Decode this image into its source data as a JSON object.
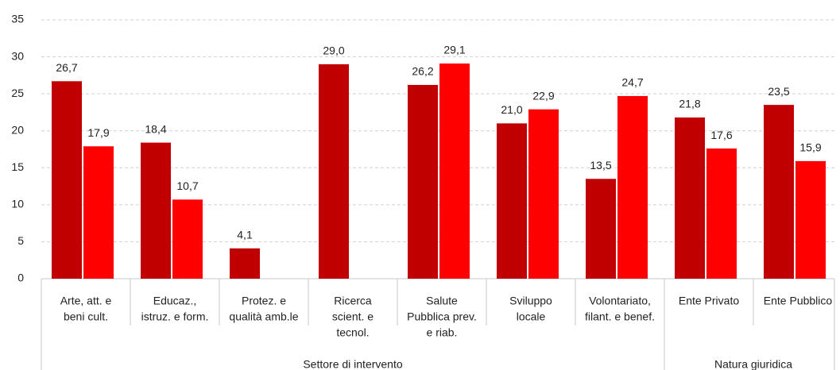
{
  "chart_data": {
    "type": "bar",
    "categories": [
      [
        "Arte, att. e",
        "beni cult."
      ],
      [
        "Educaz.,",
        "istruz. e form."
      ],
      [
        "Protez. e",
        "qualità amb.le"
      ],
      [
        "Ricerca",
        "scient. e",
        "tecnol."
      ],
      [
        "Salute",
        "Pubblica prev.",
        "e riab."
      ],
      [
        "Sviluppo",
        "locale"
      ],
      [
        "Volontariato,",
        "filant. e benef."
      ],
      [
        "Ente Privato"
      ],
      [
        "Ente Pubblico"
      ]
    ],
    "groups": [
      {
        "label": "Settore di intervento",
        "size": 7
      },
      {
        "label": "Natura giuridica",
        "size": 2
      }
    ],
    "series": [
      {
        "color": "#c00000",
        "values": [
          26.7,
          18.4,
          4.1,
          29.0,
          26.2,
          21.0,
          13.5,
          21.8,
          23.5
        ],
        "value_labels": [
          "26,7",
          "18,4",
          "4,1",
          "29,0",
          "26,2",
          "21,0",
          "13,5",
          "21,8",
          "23,5"
        ]
      },
      {
        "color": "#ff0000",
        "values": [
          17.9,
          10.7,
          null,
          null,
          29.1,
          22.9,
          24.7,
          17.6,
          15.9
        ],
        "value_labels": [
          "17,9",
          "10,7",
          null,
          null,
          "29,1",
          "22,9",
          "24,7",
          "17,6",
          "15,9"
        ]
      }
    ],
    "ylim": [
      0,
      35
    ],
    "yticks": [
      0,
      5,
      10,
      15,
      20,
      25,
      30,
      35
    ],
    "grid": true
  }
}
